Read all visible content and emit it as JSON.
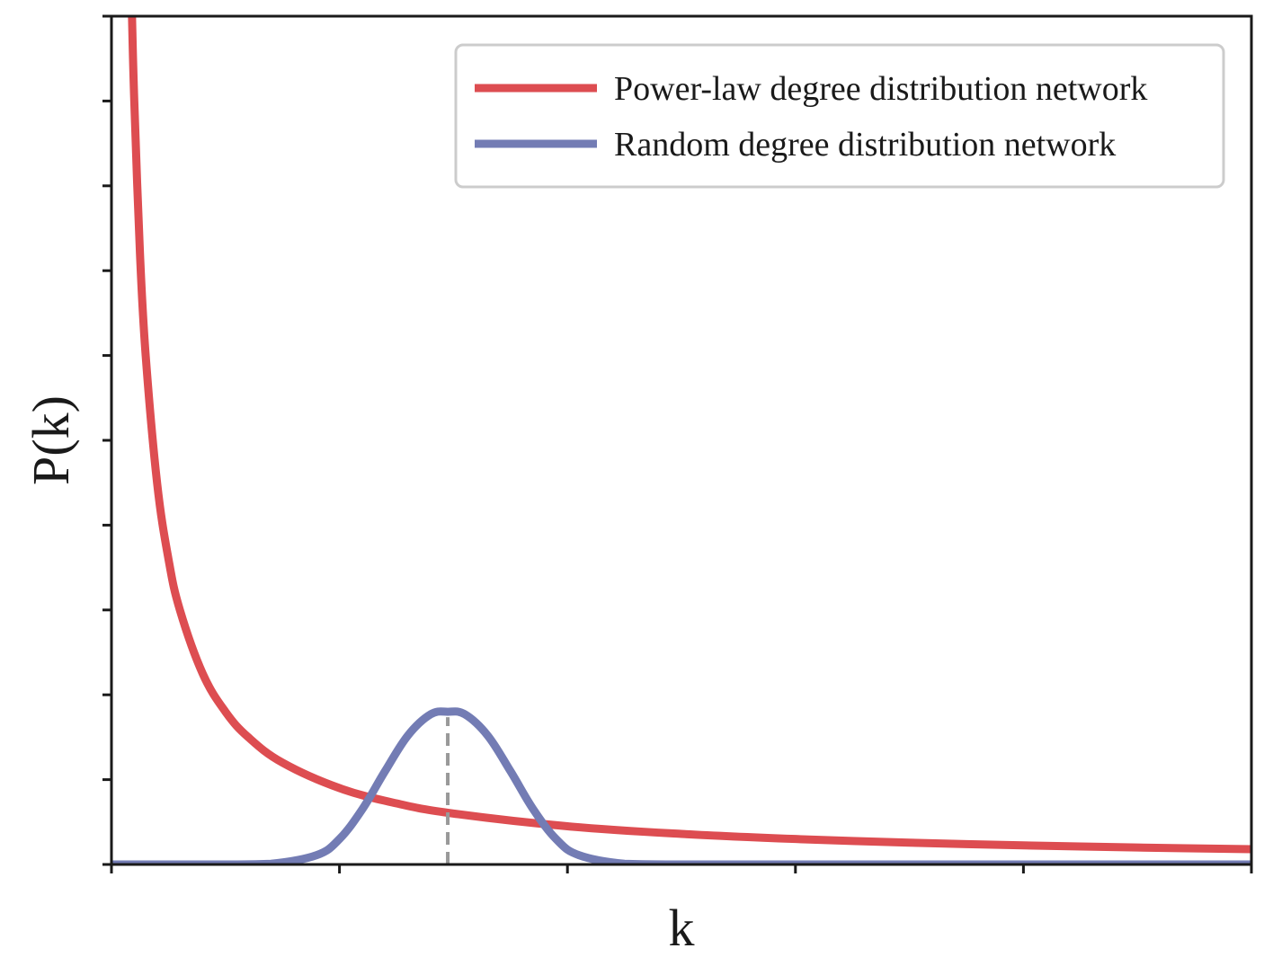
{
  "chart_data": {
    "type": "line",
    "title": "",
    "xlabel": "k",
    "ylabel": "P(k)",
    "xlim": [
      0,
      100
    ],
    "ylim": [
      0,
      1
    ],
    "x_ticks": [
      0,
      20,
      40,
      60,
      80,
      100
    ],
    "y_ticks": [
      0,
      0.1,
      0.2,
      0.3,
      0.4,
      0.5,
      0.6,
      0.7,
      0.8,
      0.9,
      1.0
    ],
    "tick_labels_visible": false,
    "grid": false,
    "legend_position": "top-right",
    "series": [
      {
        "name": "Power-law degree distribution network",
        "color": "#dd4d51",
        "x": [
          1.8,
          2,
          2.5,
          3,
          4,
          5,
          6,
          8,
          10,
          12,
          15,
          20,
          25,
          30,
          40,
          50,
          60,
          70,
          80,
          90,
          100
        ],
        "values": [
          1.0,
          0.9,
          0.72,
          0.6,
          0.45,
          0.36,
          0.3,
          0.225,
          0.18,
          0.15,
          0.12,
          0.09,
          0.072,
          0.06,
          0.045,
          0.036,
          0.03,
          0.0257,
          0.0225,
          0.02,
          0.018
        ]
      },
      {
        "name": "Random degree distribution network",
        "color": "#737cb4",
        "x": [
          0,
          10,
          14,
          18,
          20,
          22,
          24,
          26,
          28,
          29.5,
          31,
          33,
          35,
          37,
          39,
          41,
          45,
          50,
          60,
          80,
          100
        ],
        "values": [
          0,
          0,
          0.0008,
          0.011,
          0.03,
          0.065,
          0.11,
          0.152,
          0.177,
          0.18,
          0.177,
          0.152,
          0.11,
          0.065,
          0.03,
          0.011,
          0.0008,
          0,
          0,
          0,
          0
        ]
      }
    ],
    "annotations": [
      {
        "type": "vertical-dashed-line",
        "x": 29.5,
        "y_from": 0,
        "y_to": 0.18,
        "color": "#999999"
      }
    ]
  }
}
